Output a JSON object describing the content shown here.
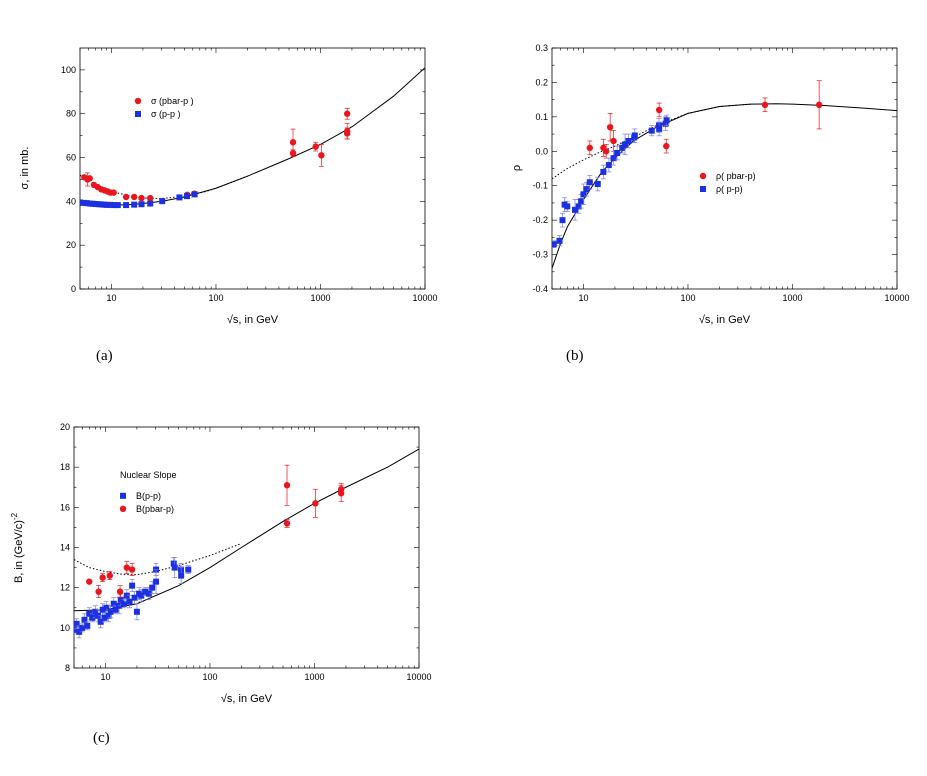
{
  "colors": {
    "red": "#e8161e",
    "blue": "#1b30e0",
    "err_red": "#e8161e",
    "err_blue": "#7a7ae8"
  },
  "chart_data": [
    {
      "id": "a",
      "type": "scatter",
      "caption": "(a)",
      "xlabel": "√s, in GeV",
      "ylabel": "σ, in mb.",
      "xscale": "log",
      "xlim": [
        5,
        10000
      ],
      "ylim": [
        0,
        110
      ],
      "xticks": [
        10,
        100,
        1000,
        10000
      ],
      "yticks": [
        0,
        20,
        40,
        60,
        80,
        100
      ],
      "legend": {
        "position": "upper-left",
        "entries": [
          "σ (pbar-p )",
          "σ (p-p )"
        ]
      },
      "series": [
        {
          "name": "σ (pbar-p )",
          "marker": "circle",
          "color": "red",
          "points": [
            [
              5.5,
              51,
              0
            ],
            [
              5.9,
              50,
              3
            ],
            [
              6.2,
              50.5,
              0
            ],
            [
              6.8,
              47.5,
              0
            ],
            [
              7.4,
              46.5,
              0
            ],
            [
              8,
              45.5,
              0
            ],
            [
              8.6,
              45,
              0
            ],
            [
              9.2,
              44.5,
              0
            ],
            [
              9.8,
              44,
              0
            ],
            [
              10.5,
              44,
              0
            ],
            [
              13.8,
              42,
              0
            ],
            [
              16.5,
              42,
              0
            ],
            [
              19.4,
              41.5,
              0
            ],
            [
              23.5,
              41.5,
              0
            ],
            [
              53,
              43,
              0
            ],
            [
              62,
              43.5,
              0
            ],
            [
              546,
              67,
              6
            ],
            [
              546,
              62,
              1.5
            ],
            [
              900,
              65,
              2
            ],
            [
              1020,
              61,
              5
            ],
            [
              1800,
              80,
              2.5
            ],
            [
              1800,
              72,
              3.5
            ],
            [
              1800,
              71,
              2.5
            ]
          ]
        },
        {
          "name": "σ (p-p )",
          "marker": "square",
          "color": "blue",
          "points": [
            [
              5,
              39.5
            ],
            [
              5.4,
              39.3
            ],
            [
              5.8,
              39.2
            ],
            [
              6.2,
              39
            ],
            [
              6.6,
              38.9
            ],
            [
              7,
              38.8
            ],
            [
              7.5,
              38.7
            ],
            [
              8,
              38.6
            ],
            [
              8.5,
              38.5
            ],
            [
              9,
              38.4
            ],
            [
              9.7,
              38.4
            ],
            [
              10.5,
              38.3
            ],
            [
              11.5,
              38.3
            ],
            [
              13.8,
              38.3
            ],
            [
              16.5,
              38.5
            ],
            [
              19.4,
              38.7
            ],
            [
              23.5,
              39
            ],
            [
              30.6,
              40.1
            ],
            [
              44.7,
              41.8
            ],
            [
              52.8,
              42.4
            ],
            [
              62.5,
              43.2
            ]
          ]
        }
      ],
      "curves": [
        {
          "name": "fit-solid",
          "style": "solid",
          "points": [
            [
              5,
              39
            ],
            [
              7,
              38.6
            ],
            [
              10,
              38.3
            ],
            [
              15,
              38.5
            ],
            [
              20,
              39
            ],
            [
              30,
              40
            ],
            [
              50,
              42
            ],
            [
              100,
              46
            ],
            [
              200,
              51.5
            ],
            [
              500,
              59.5
            ],
            [
              1000,
              66
            ],
            [
              2000,
              74
            ],
            [
              5000,
              88
            ],
            [
              10000,
              101
            ]
          ]
        },
        {
          "name": "fit-dotted",
          "style": "dotted",
          "points": [
            [
              5,
              52
            ],
            [
              6,
              49.5
            ],
            [
              8,
              46.5
            ],
            [
              10,
              44.5
            ],
            [
              15,
              42.5
            ],
            [
              20,
              41.5
            ],
            [
              30,
              41.3
            ],
            [
              50,
              42.3
            ],
            [
              80,
              44.5
            ],
            [
              100,
              46
            ],
            [
              200,
              51.5
            ]
          ]
        }
      ]
    },
    {
      "id": "b",
      "type": "scatter",
      "caption": "(b)",
      "xlabel": "√s, in GeV",
      "ylabel": "ρ",
      "xscale": "log",
      "xlim": [
        5,
        10000
      ],
      "ylim": [
        -0.4,
        0.3
      ],
      "xticks": [
        10,
        100,
        1000,
        10000
      ],
      "yticks": [
        -0.4,
        -0.3,
        -0.2,
        -0.1,
        0.0,
        0.1,
        0.2,
        0.3
      ],
      "ytick_labels": [
        "-0.4",
        "-0.3",
        "-0.2",
        "-0.1",
        "0.0",
        "0.1",
        "0.2",
        "0.3"
      ],
      "legend": {
        "position": "center-right",
        "entries": [
          "ρ( pbar-p)",
          "ρ( p-p)"
        ]
      },
      "series": [
        {
          "name": "ρ( pbar-p)",
          "marker": "circle",
          "color": "red",
          "points": [
            [
              11.5,
              0.01,
              0.02
            ],
            [
              15.5,
              0.01,
              0.025
            ],
            [
              16.5,
              0.0,
              0.02
            ],
            [
              18,
              0.07,
              0.04
            ],
            [
              19.4,
              0.03,
              0.03
            ],
            [
              53,
              0.12,
              0.02
            ],
            [
              62,
              0.015,
              0.02
            ],
            [
              546,
              0.135,
              0.02
            ],
            [
              1800,
              0.135,
              0.07
            ]
          ]
        },
        {
          "name": "ρ( p-p)",
          "marker": "square",
          "color": "blue",
          "points": [
            [
              5.2,
              -0.27,
              0.01
            ],
            [
              5.9,
              -0.26,
              0.015
            ],
            [
              6.3,
              -0.2,
              0.02
            ],
            [
              6.6,
              -0.155,
              0.02
            ],
            [
              7,
              -0.16,
              0.015
            ],
            [
              8.3,
              -0.17,
              0.03
            ],
            [
              9,
              -0.16,
              0.02
            ],
            [
              9.5,
              -0.145,
              0.02
            ],
            [
              10,
              -0.125,
              0.03
            ],
            [
              10.7,
              -0.11,
              0.02
            ],
            [
              11.5,
              -0.09,
              0.02
            ],
            [
              13.7,
              -0.095,
              0.02
            ],
            [
              15.5,
              -0.06,
              0.02
            ],
            [
              17.5,
              -0.04,
              0.02
            ],
            [
              19.4,
              -0.02,
              0.02
            ],
            [
              21,
              -0.005,
              0.02
            ],
            [
              23.5,
              0.01,
              0.015
            ],
            [
              25,
              0.02,
              0.03
            ],
            [
              27,
              0.03,
              0.02
            ],
            [
              30.6,
              0.04,
              0.015
            ],
            [
              31,
              0.045,
              0.02
            ],
            [
              45,
              0.06,
              0.015
            ],
            [
              52.8,
              0.075,
              0.02
            ],
            [
              53,
              0.065,
              0.02
            ],
            [
              61,
              0.08,
              0.02
            ],
            [
              62.5,
              0.09,
              0.015
            ]
          ]
        }
      ],
      "curves": [
        {
          "name": "fit-solid",
          "style": "solid",
          "points": [
            [
              5,
              -0.34
            ],
            [
              6,
              -0.27
            ],
            [
              7,
              -0.22
            ],
            [
              8,
              -0.19
            ],
            [
              10,
              -0.14
            ],
            [
              15,
              -0.06
            ],
            [
              20,
              -0.02
            ],
            [
              30,
              0.03
            ],
            [
              50,
              0.07
            ],
            [
              100,
              0.11
            ],
            [
              200,
              0.13
            ],
            [
              400,
              0.137
            ],
            [
              700,
              0.138
            ],
            [
              1000,
              0.137
            ],
            [
              2000,
              0.133
            ],
            [
              5000,
              0.125
            ],
            [
              10000,
              0.118
            ]
          ]
        },
        {
          "name": "fit-dotted",
          "style": "dotted",
          "points": [
            [
              5,
              -0.08
            ],
            [
              7,
              -0.05
            ],
            [
              10,
              -0.025
            ],
            [
              15,
              0.0
            ],
            [
              20,
              0.015
            ],
            [
              30,
              0.04
            ],
            [
              50,
              0.075
            ],
            [
              100,
              0.11
            ],
            [
              200,
              0.13
            ],
            [
              400,
              0.137
            ]
          ]
        }
      ]
    },
    {
      "id": "c",
      "type": "scatter",
      "caption": "(c)",
      "xlabel": "√s, in GeV",
      "ylabel": "B, in (GeV/c)",
      "ylabel_exponent": "-2",
      "xscale": "log",
      "xlim": [
        5,
        10000
      ],
      "ylim": [
        8,
        20
      ],
      "xticks": [
        10,
        100,
        1000,
        10000
      ],
      "yticks": [
        8,
        10,
        12,
        14,
        16,
        18,
        20
      ],
      "legend": {
        "position": "upper-left",
        "title": "Nuclear Slope",
        "entries": [
          "B(p-p)",
          "B(pbar-p)"
        ]
      },
      "series": [
        {
          "name": "B(p-p)",
          "marker": "square",
          "color": "blue",
          "points": [
            [
              5,
              9.9,
              0.2
            ],
            [
              5.3,
              10.2,
              0.25
            ],
            [
              5.6,
              9.8,
              0.3
            ],
            [
              6,
              10,
              0.2
            ],
            [
              6.3,
              10.4,
              0.3
            ],
            [
              6.7,
              10.1,
              0.2
            ],
            [
              7,
              10.7,
              0.3
            ],
            [
              7.5,
              10.5,
              0.2
            ],
            [
              8,
              10.8,
              0.3
            ],
            [
              8.5,
              10.6,
              0.3
            ],
            [
              9,
              10.3,
              0.3
            ],
            [
              9.4,
              10.9,
              0.3
            ],
            [
              9.8,
              10.5,
              0.2
            ],
            [
              10.2,
              11,
              0.3
            ],
            [
              10.7,
              10.6,
              0.3
            ],
            [
              11.2,
              10.8,
              0.3
            ],
            [
              12,
              11.2,
              0.3
            ],
            [
              12.5,
              10.9,
              0.2
            ],
            [
              13.5,
              11.1,
              0.4
            ],
            [
              14,
              11.4,
              0.3
            ],
            [
              15,
              11.2,
              0.2
            ],
            [
              16,
              11.6,
              0.3
            ],
            [
              17,
              11.3,
              0.3
            ],
            [
              18,
              12.1,
              0.3
            ],
            [
              19,
              11.5,
              0.3
            ],
            [
              20,
              10.8,
              0.4
            ],
            [
              21,
              11.7,
              0.3
            ],
            [
              22,
              11.6,
              0.3
            ],
            [
              24,
              11.8,
              0.2
            ],
            [
              26,
              11.7,
              0.3
            ],
            [
              28,
              12,
              0.3
            ],
            [
              30.5,
              12.9,
              0.3
            ],
            [
              30.5,
              12.3,
              0.6
            ],
            [
              45,
              13.2,
              0.3
            ],
            [
              46,
              13,
              0.5
            ],
            [
              52.8,
              12.9,
              0.3
            ],
            [
              53,
              12.6,
              0.4
            ],
            [
              62,
              12.9,
              0.2
            ]
          ]
        },
        {
          "name": "B(pbar-p)",
          "marker": "circle",
          "color": "red",
          "points": [
            [
              7,
              12.3,
              0
            ],
            [
              8.6,
              11.8,
              0.3
            ],
            [
              9.4,
              12.5,
              0.2
            ],
            [
              11,
              12.6,
              0.2
            ],
            [
              13.8,
              11.8,
              0.3
            ],
            [
              16,
              13,
              0.3
            ],
            [
              18,
              12.9,
              0.3
            ],
            [
              546,
              17.1,
              1
            ],
            [
              546,
              15.2,
              0.2
            ],
            [
              1020,
              16.2,
              0.7
            ],
            [
              1800,
              16.9,
              0.3
            ],
            [
              1800,
              16.7,
              0.4
            ]
          ]
        }
      ],
      "curves": [
        {
          "name": "fit-solid",
          "style": "solid",
          "points": [
            [
              5,
              10.85
            ],
            [
              10,
              10.9
            ],
            [
              20,
              11.2
            ],
            [
              50,
              12.1
            ],
            [
              100,
              13
            ],
            [
              200,
              14
            ],
            [
              500,
              15.3
            ],
            [
              1000,
              16.2
            ],
            [
              2000,
              17
            ],
            [
              5000,
              18
            ],
            [
              10000,
              18.9
            ]
          ]
        },
        {
          "name": "fit-dotted",
          "style": "dotted",
          "points": [
            [
              5,
              13.4
            ],
            [
              7,
              13
            ],
            [
              10,
              12.8
            ],
            [
              15,
              12.65
            ],
            [
              20,
              12.65
            ],
            [
              30,
              12.8
            ],
            [
              50,
              13.1
            ],
            [
              100,
              13.6
            ],
            [
              200,
              14.2
            ]
          ]
        }
      ]
    }
  ]
}
